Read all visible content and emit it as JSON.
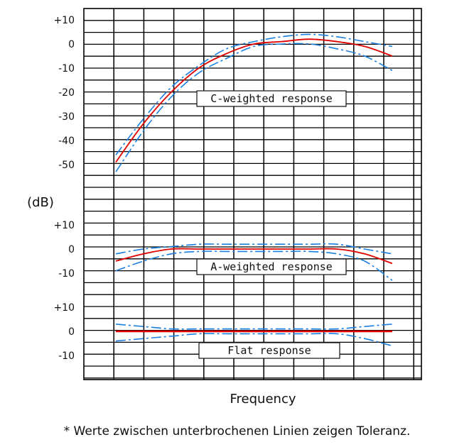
{
  "chart_data": {
    "type": "line",
    "xlabel": "Frequency",
    "ylabel": "(dB)",
    "grid": true,
    "colors": {
      "response": "#e00000",
      "tolerance": "#1a7fe0",
      "grid": "#000000"
    },
    "panels": [
      {
        "label": "C-weighted response",
        "ticks": [
          "+10",
          "0",
          "-10",
          "-20",
          "-30",
          "-40",
          "-50"
        ],
        "tick_values": [
          10,
          0,
          -10,
          -20,
          -30,
          -40,
          -50
        ],
        "x": [
          0,
          1,
          2,
          3,
          4,
          5,
          6,
          7,
          8,
          9,
          10
        ],
        "response": [
          -49,
          -33,
          -20,
          -10,
          -4,
          0,
          1,
          2,
          1,
          -1,
          -5
        ],
        "upper_tolerance": [
          -46,
          -31,
          -18,
          -9,
          -2,
          1,
          3,
          4,
          3,
          1,
          -1
        ],
        "lower_tolerance": [
          -53,
          -36,
          -22,
          -12,
          -6,
          -1,
          0,
          0,
          -2,
          -5,
          -11
        ]
      },
      {
        "label": "A-weighted response",
        "ticks": [
          "+10",
          "0",
          "-10"
        ],
        "tick_values": [
          10,
          0,
          -10
        ],
        "x": [
          0,
          1,
          2,
          3,
          4,
          5,
          6,
          7,
          8,
          9,
          10
        ],
        "response": [
          -5,
          -2,
          0,
          0,
          0,
          0,
          0,
          0,
          0,
          -2,
          -6
        ],
        "upper_tolerance": [
          -2,
          0,
          1,
          2,
          2,
          2,
          2,
          2,
          2,
          0,
          -2
        ],
        "lower_tolerance": [
          -9,
          -5,
          -2,
          -1,
          -1,
          -1,
          -1,
          -1,
          -2,
          -5,
          -13
        ]
      },
      {
        "label": "Flat response",
        "ticks": [
          "+10",
          "0",
          "-10"
        ],
        "tick_values": [
          10,
          0,
          -10
        ],
        "x": [
          0,
          1,
          2,
          3,
          4,
          5,
          6,
          7,
          8,
          9,
          10
        ],
        "response": [
          0,
          0,
          0,
          0,
          0,
          0,
          0,
          0,
          0,
          0,
          0
        ],
        "upper_tolerance": [
          3,
          2,
          1,
          1,
          1,
          1,
          1,
          1,
          1,
          2,
          3
        ],
        "lower_tolerance": [
          -4,
          -3,
          -2,
          -1,
          -1,
          -1,
          -1,
          -1,
          -1,
          -3,
          -6
        ]
      }
    ]
  },
  "footnote": "* Werte zwischen unterbrochenen Linien zeigen Toleranz."
}
